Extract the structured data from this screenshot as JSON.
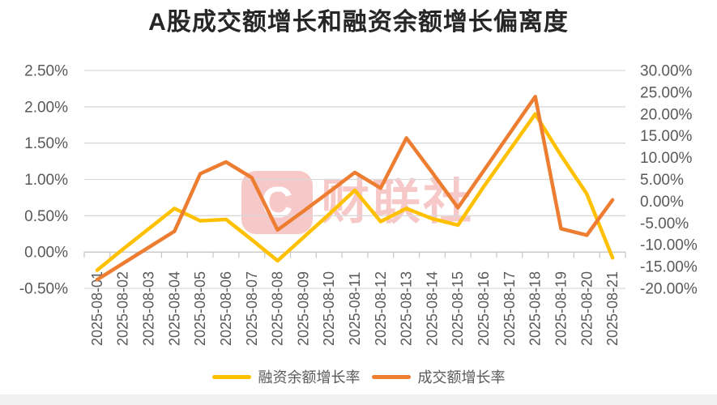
{
  "title": "A股成交额增长和融资余额增长偏离度",
  "watermark": {
    "logo_letter": "C",
    "text": "财联社"
  },
  "legend": {
    "items": [
      {
        "label": "融资余额增长率",
        "color": "#FFC000"
      },
      {
        "label": "成交额增长率",
        "color": "#ED7D31"
      }
    ]
  },
  "colors": {
    "background": "#FFFFFF",
    "grid": "#D9D9D9",
    "axis_line": "#C6C6C6",
    "tick_label": "#595959",
    "title": "#262626",
    "footer_band": "#F1F1F1",
    "watermark": "#E04A4A",
    "series_margin_balance": "#FFC000",
    "series_turnover": "#ED7D31"
  },
  "chart_data": {
    "type": "line",
    "title": "A股成交额增长和融资余额增长偏离度",
    "grid": true,
    "legend_position": "bottom",
    "categories": [
      "2025-08-01",
      "2025-08-02",
      "2025-08-03",
      "2025-08-04",
      "2025-08-05",
      "2025-08-06",
      "2025-08-07",
      "2025-08-08",
      "2025-08-09",
      "2025-08-10",
      "2025-08-11",
      "2025-08-12",
      "2025-08-13",
      "2025-08-14",
      "2025-08-15",
      "2025-08-16",
      "2025-08-17",
      "2025-08-18",
      "2025-08-19",
      "2025-08-20",
      "2025-08-21"
    ],
    "series": [
      {
        "name": "融资余额增长率",
        "axis": "left",
        "color": "#FFC000",
        "unit": "%",
        "values": [
          -0.25,
          0.04,
          0.32,
          0.6,
          0.43,
          0.45,
          0.17,
          -0.12,
          0.2,
          0.52,
          0.85,
          0.42,
          0.6,
          0.46,
          0.37,
          0.9,
          1.4,
          1.9,
          1.33,
          0.8,
          -0.08
        ]
      },
      {
        "name": "成交额增长率",
        "axis": "right",
        "color": "#ED7D31",
        "unit": "%",
        "values": [
          -18.0,
          -14.3,
          -10.6,
          -6.9,
          6.3,
          9.0,
          5.4,
          -6.6,
          -2.3,
          2.1,
          6.6,
          3.0,
          14.5,
          6.6,
          -1.5,
          7.0,
          15.5,
          24.0,
          -6.3,
          -7.8,
          0.3
        ]
      }
    ],
    "left_axis": {
      "min": -0.5,
      "max": 2.5,
      "tick_values": [
        2.5,
        2.0,
        1.5,
        1.0,
        0.5,
        0.0,
        -0.5
      ],
      "tick_labels": [
        "2.50%",
        "2.00%",
        "1.50%",
        "1.00%",
        "0.50%",
        "0.00%",
        "-0.50%"
      ]
    },
    "right_axis": {
      "min": -20,
      "max": 30,
      "tick_values": [
        30,
        25,
        20,
        15,
        10,
        5,
        0,
        -5,
        -10,
        -15,
        -20
      ],
      "tick_labels": [
        "30.00%",
        "25.00%",
        "20.00%",
        "15.00%",
        "10.00%",
        "5.00%",
        "0.00%",
        "-5.00%",
        "-10.00%",
        "-15.00%",
        "-20.00%"
      ]
    }
  }
}
